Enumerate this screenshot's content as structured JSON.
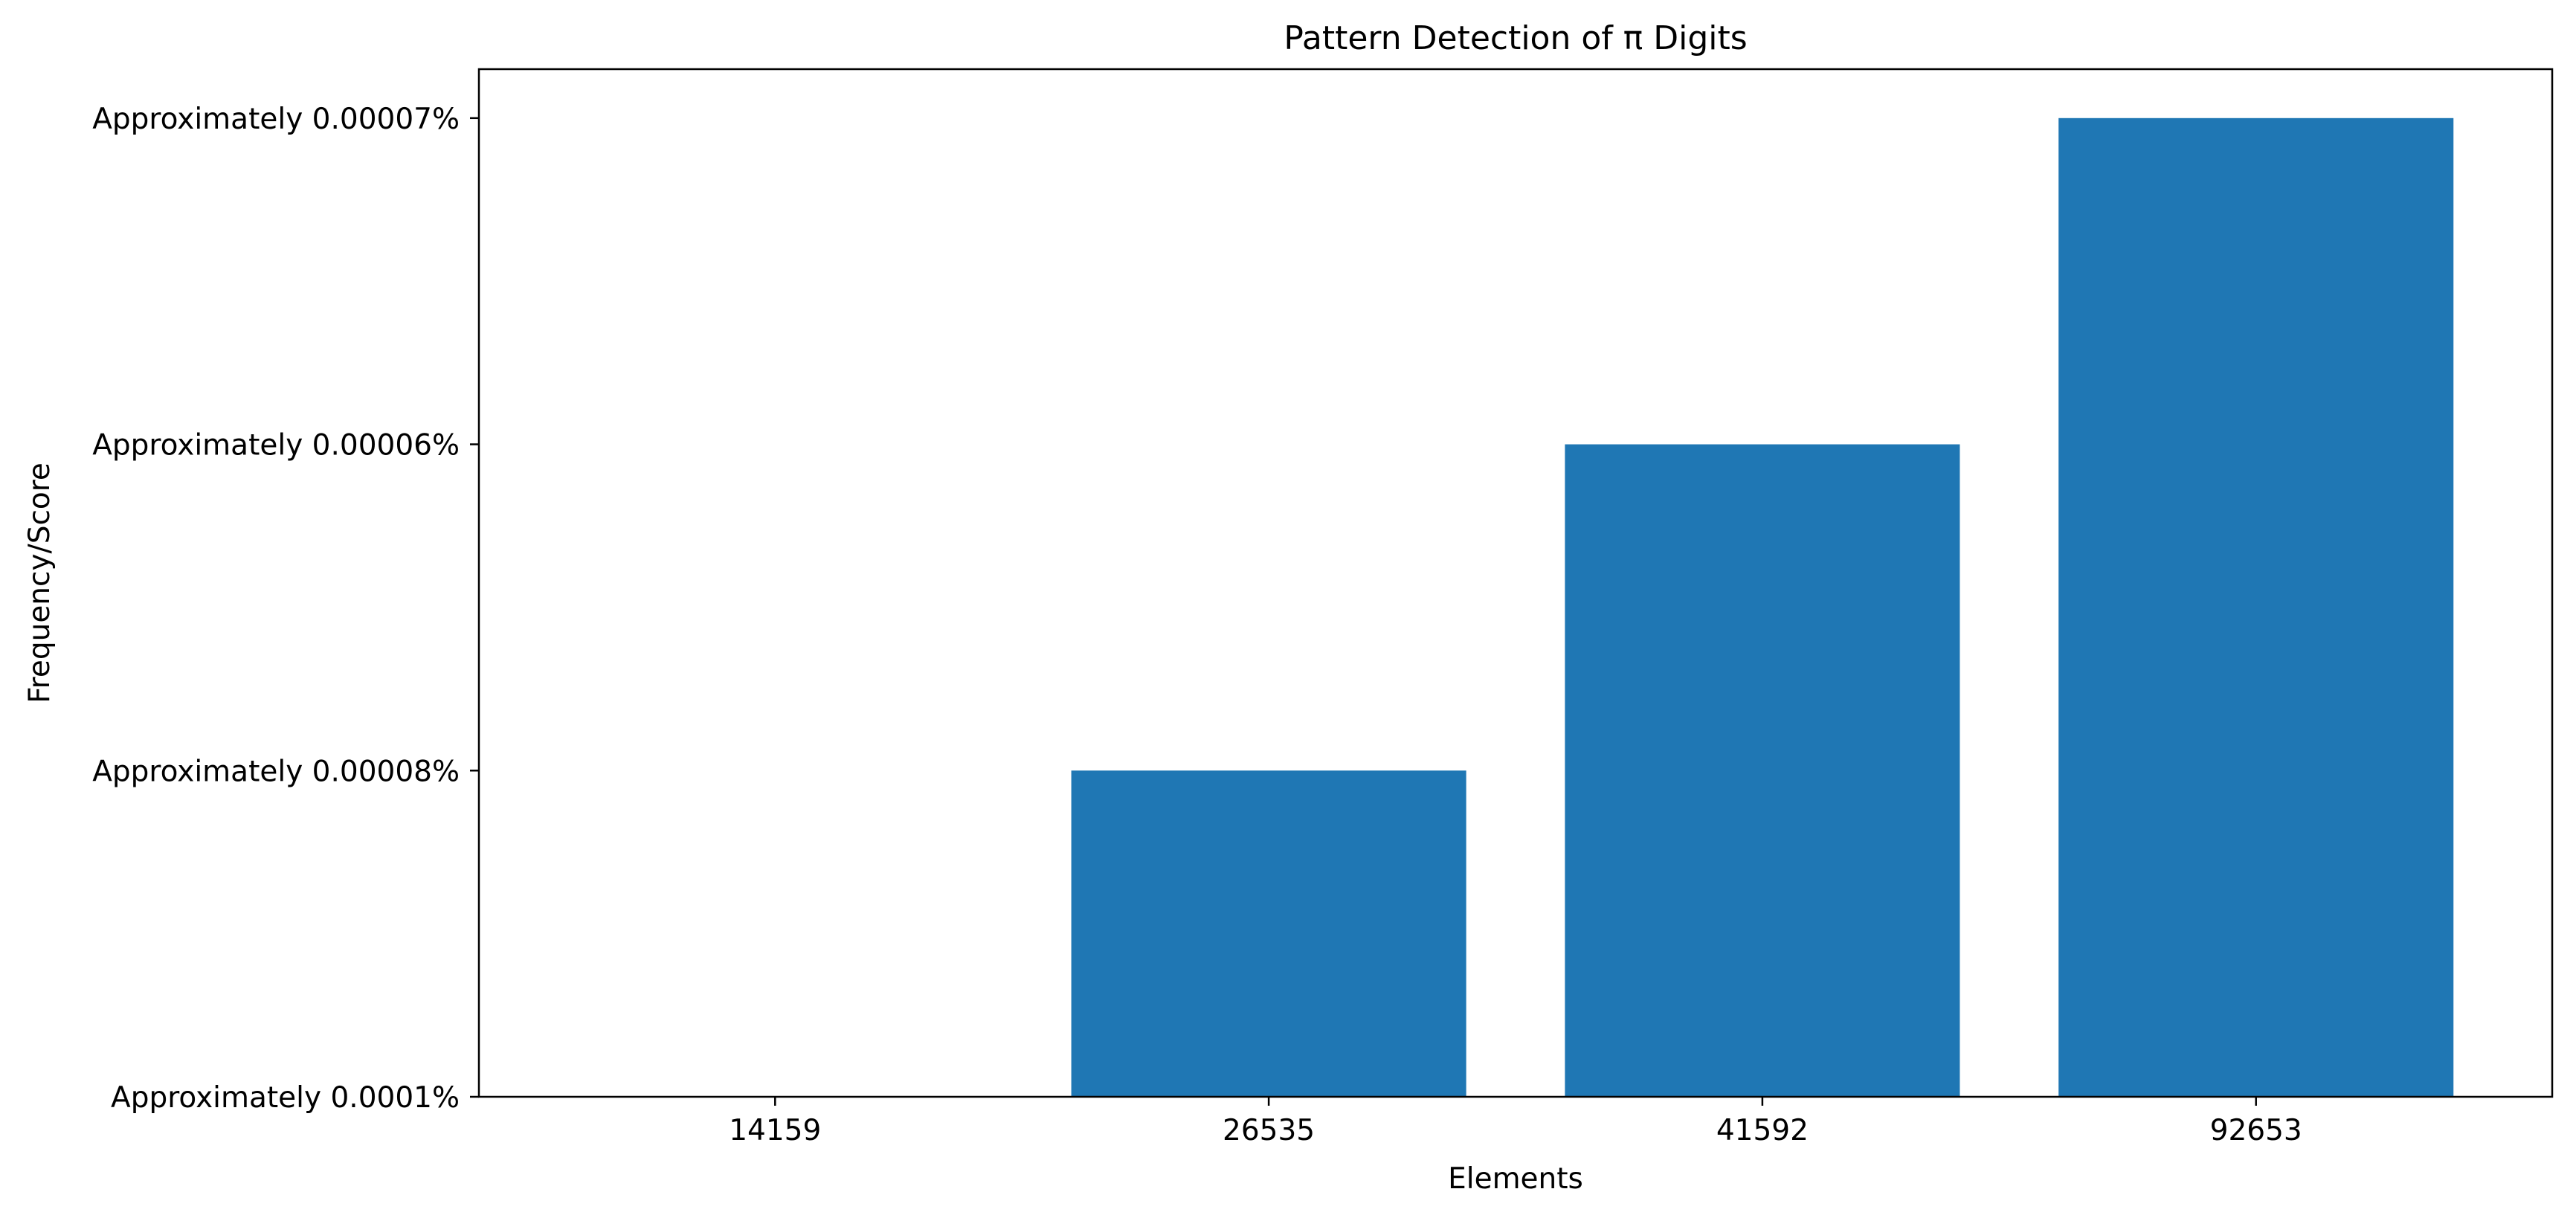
{
  "chart_data": {
    "type": "bar",
    "title": "Pattern Detection of π Digits",
    "xlabel": "Elements",
    "ylabel": "Frequency/Score",
    "categories": [
      "14159",
      "26535",
      "41592",
      "92653"
    ],
    "values": [
      0,
      1,
      2,
      3
    ],
    "yticks": [
      {
        "value": 0,
        "label": "Approximately 0.0001%"
      },
      {
        "value": 1,
        "label": "Approximately 0.00008%"
      },
      {
        "value": 2,
        "label": "Approximately 0.00006%"
      },
      {
        "value": 3,
        "label": "Approximately 0.00007%"
      }
    ],
    "ylim": [
      0,
      3.15
    ],
    "grid": false,
    "bar_color": "#1f77b4"
  }
}
